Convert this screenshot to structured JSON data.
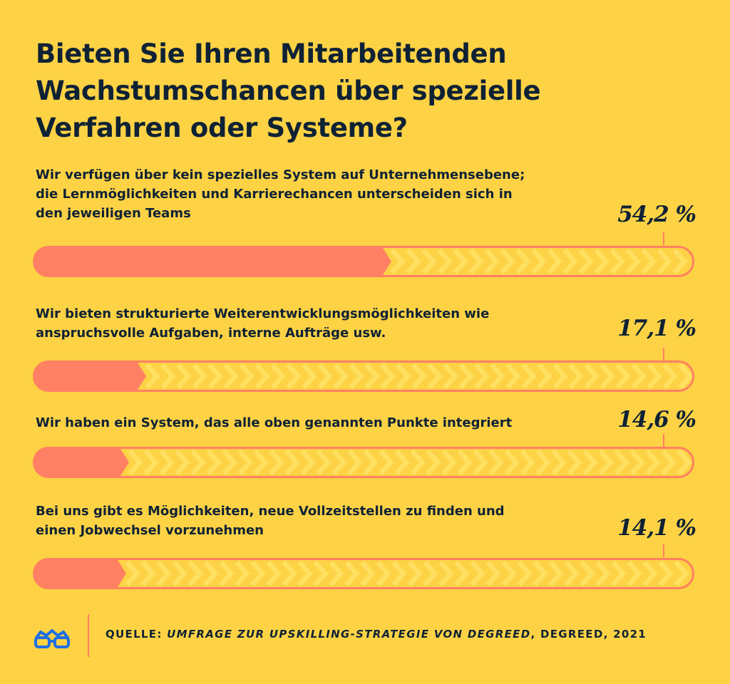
{
  "title": {
    "lines": [
      "Bieten Sie Ihren Mitarbeitenden",
      "Wachstumschancen über spezielle",
      "Verfahren oder Systeme?"
    ]
  },
  "chart_data": {
    "type": "bar",
    "orientation": "horizontal",
    "title": "Bieten Sie Ihren Mitarbeitenden Wachstumschancen über spezielle Verfahren oder Systeme?",
    "xlim": [
      0,
      100
    ],
    "unit": "%",
    "categories": [
      "Wir verfügen über kein spezielles System auf Unternehmensebene; die Lernmöglichkeiten und Karrierechancen unterscheiden sich in den jeweiligen Teams",
      "Wir bieten strukturierte Weiterentwicklungsmöglichkeiten wie anspruchsvolle Aufgaben, interne Aufträge usw.",
      "Wir haben ein System, das alle oben genannten Punkte integriert",
      "Bei uns gibt es Möglichkeiten, neue Vollzeitstellen zu finden und einen Jobwechsel vorzunehmen"
    ],
    "values": [
      54.2,
      17.1,
      14.6,
      14.1
    ],
    "items": [
      {
        "label_lines": [
          "Wir verfügen über kein spezielles System auf Unternehmensebene;",
          "die Lernmöglichkeiten und Karrierechancen unterscheiden sich in",
          "den jeweiligen Teams"
        ],
        "value": 54.2,
        "value_label": "54,2 %"
      },
      {
        "label_lines": [
          "Wir bieten strukturierte Weiterentwicklungsmöglichkeiten wie",
          "anspruchsvolle Aufgaben, interne Aufträge usw."
        ],
        "value": 17.1,
        "value_label": "17,1 %"
      },
      {
        "label_lines": [
          "Wir haben ein System, das alle oben genannten Punkte integriert"
        ],
        "value": 14.6,
        "value_label": "14,6 %"
      },
      {
        "label_lines": [
          "Bei uns gibt es Möglichkeiten, neue Vollzeitstellen zu finden und",
          "einen Jobwechsel vorzunehmen"
        ],
        "value": 14.1,
        "value_label": "14,1 %"
      }
    ],
    "colors": {
      "background": "#FDD245",
      "fill": "#FF8062",
      "chevron": "#FFE061",
      "outline": "#FF8062",
      "text": "#0F2235"
    }
  },
  "footer": {
    "logo_icon": "glasses-icon",
    "source_prefix": "QUELLE: ",
    "source_publication": "UMFRAGE ZUR UPSKILLING-STRATEGIE VON DEGREED",
    "source_suffix": ", DEGREED, 2021"
  }
}
